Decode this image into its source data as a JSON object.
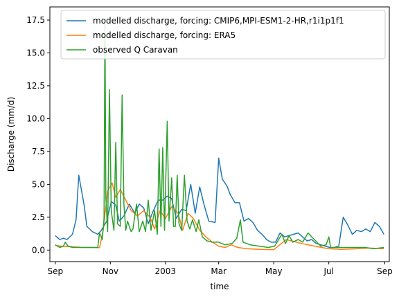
{
  "chart_data": {
    "type": "line",
    "title": "",
    "xlabel": "time",
    "ylabel": "Discharge (mm/d)",
    "x_range": [
      "2002-08-26",
      "2003-09-06"
    ],
    "ylim": [
      -0.88,
      18.5
    ],
    "x_ticks": [
      {
        "date": "2002-09-01",
        "label": "Sep"
      },
      {
        "date": "2002-11-01",
        "label": "Nov"
      },
      {
        "date": "2003-01-01",
        "label": "2003"
      },
      {
        "date": "2003-03-01",
        "label": "Mar"
      },
      {
        "date": "2003-05-01",
        "label": "May"
      },
      {
        "date": "2003-07-01",
        "label": "Jul"
      },
      {
        "date": "2003-09-01",
        "label": "Sep"
      }
    ],
    "y_ticks": [
      0.0,
      2.5,
      5.0,
      7.5,
      10.0,
      12.5,
      15.0,
      17.5
    ],
    "y_tick_labels": [
      "0.0",
      "2.5",
      "5.0",
      "7.5",
      "10.0",
      "12.5",
      "15.0",
      "17.5"
    ],
    "grid": false,
    "legend_position": "top-right",
    "series": [
      {
        "name": "modelled discharge, forcing: CMIP6,MPI-ESM1-2-HR,r1i1p1f1",
        "color": "#1f77b4",
        "x": [
          "2002-09-01",
          "2002-09-06",
          "2002-09-10",
          "2002-09-14",
          "2002-09-20",
          "2002-09-24",
          "2002-09-27",
          "2002-10-03",
          "2002-10-06",
          "2002-10-12",
          "2002-10-18",
          "2002-10-22",
          "2002-10-28",
          "2002-11-02",
          "2002-11-07",
          "2002-11-11",
          "2002-11-16",
          "2002-11-22",
          "2002-11-28",
          "2002-12-03",
          "2002-12-08",
          "2002-12-13",
          "2002-12-18",
          "2002-12-24",
          "2002-12-29",
          "2003-01-03",
          "2003-01-08",
          "2003-01-13",
          "2003-01-19",
          "2003-01-24",
          "2003-01-29",
          "2003-02-03",
          "2003-02-08",
          "2003-02-13",
          "2003-02-18",
          "2003-02-25",
          "2003-03-01",
          "2003-03-05",
          "2003-03-10",
          "2003-03-14",
          "2003-03-19",
          "2003-03-24",
          "2003-03-29",
          "2003-04-03",
          "2003-04-08",
          "2003-04-13",
          "2003-04-18",
          "2003-04-23",
          "2003-04-28",
          "2003-05-03",
          "2003-05-08",
          "2003-05-13",
          "2003-05-18",
          "2003-05-23",
          "2003-05-28",
          "2003-06-02",
          "2003-06-07",
          "2003-06-12",
          "2003-06-17",
          "2003-06-22",
          "2003-06-27",
          "2003-07-02",
          "2003-07-07",
          "2003-07-12",
          "2003-07-17",
          "2003-07-22",
          "2003-07-27",
          "2003-08-01",
          "2003-08-06",
          "2003-08-11",
          "2003-08-16",
          "2003-08-21",
          "2003-08-26",
          "2003-08-31"
        ],
        "y": [
          1.1,
          0.8,
          0.9,
          0.8,
          1.2,
          2.3,
          5.7,
          3.4,
          1.8,
          1.4,
          1.2,
          1.5,
          2.2,
          3.7,
          3.4,
          2.2,
          2.6,
          3.5,
          2.8,
          3.5,
          3.2,
          2.0,
          2.9,
          3.8,
          3.8,
          4.1,
          3.9,
          2.4,
          3.1,
          3.0,
          5.0,
          2.8,
          4.8,
          3.4,
          2.2,
          2.1,
          7.0,
          5.4,
          4.9,
          4.2,
          3.6,
          3.6,
          2.2,
          2.4,
          2.1,
          1.5,
          1.2,
          0.8,
          0.6,
          0.6,
          1.3,
          1.0,
          1.1,
          1.2,
          1.3,
          1.0,
          0.7,
          0.8,
          0.5,
          0.4,
          0.3,
          0.2,
          0.2,
          0.3,
          2.5,
          1.9,
          1.2,
          1.5,
          1.4,
          1.6,
          1.4,
          2.1,
          1.8,
          1.2
        ],
        "y_max": 7.0
      },
      {
        "name": "modelled discharge, forcing: ERA5",
        "color": "#ff7f0e",
        "x": [
          "2002-09-01",
          "2002-09-10",
          "2002-09-20",
          "2002-10-01",
          "2002-10-10",
          "2002-10-20",
          "2002-10-24",
          "2002-10-29",
          "2002-11-03",
          "2002-11-07",
          "2002-11-12",
          "2002-11-18",
          "2002-11-24",
          "2002-12-01",
          "2002-12-08",
          "2002-12-15",
          "2002-12-20",
          "2002-12-26",
          "2003-01-01",
          "2003-01-08",
          "2003-01-15",
          "2003-01-20",
          "2003-01-26",
          "2003-02-01",
          "2003-02-08",
          "2003-02-15",
          "2003-02-22",
          "2003-03-01",
          "2003-03-08",
          "2003-03-15",
          "2003-03-22",
          "2003-04-01",
          "2003-04-15",
          "2003-05-01",
          "2003-05-15",
          "2003-06-01",
          "2003-06-15",
          "2003-07-01",
          "2003-07-15",
          "2003-08-01",
          "2003-08-15",
          "2003-08-31"
        ],
        "y": [
          0.35,
          0.28,
          0.25,
          0.2,
          0.2,
          0.18,
          1.5,
          4.5,
          5.1,
          4.0,
          4.6,
          3.8,
          3.0,
          2.6,
          3.0,
          2.5,
          1.6,
          3.0,
          2.4,
          3.3,
          2.8,
          1.5,
          2.8,
          2.4,
          1.5,
          1.0,
          0.6,
          0.3,
          0.2,
          0.4,
          0.2,
          0.1,
          0.05,
          0.03,
          0.8,
          0.5,
          0.3,
          0.1,
          0.05,
          0.1,
          0.15,
          0.1
        ],
        "y_max": 5.1
      },
      {
        "name": "observed Q Caravan",
        "color": "#2ca02c",
        "x": [
          "2002-09-01",
          "2002-09-06",
          "2002-09-10",
          "2002-09-12",
          "2002-09-15",
          "2002-09-20",
          "2002-09-30",
          "2002-10-10",
          "2002-10-18",
          "2002-10-20",
          "2002-10-23",
          "2002-10-25",
          "2002-10-26",
          "2002-10-27",
          "2002-10-29",
          "2002-10-31",
          "2002-11-02",
          "2002-11-05",
          "2002-11-07",
          "2002-11-09",
          "2002-11-12",
          "2002-11-14",
          "2002-11-16",
          "2002-11-18",
          "2002-11-20",
          "2002-11-24",
          "2002-11-26",
          "2002-11-30",
          "2002-12-03",
          "2002-12-07",
          "2002-12-10",
          "2002-12-13",
          "2002-12-16",
          "2002-12-20",
          "2002-12-23",
          "2002-12-25",
          "2002-12-27",
          "2002-12-29",
          "2002-12-31",
          "2003-01-03",
          "2003-01-05",
          "2003-01-08",
          "2003-01-10",
          "2003-01-12",
          "2003-01-14",
          "2003-01-16",
          "2003-01-19",
          "2003-01-22",
          "2003-01-25",
          "2003-01-28",
          "2003-01-31",
          "2003-02-04",
          "2003-02-07",
          "2003-02-11",
          "2003-02-16",
          "2003-02-22",
          "2003-03-01",
          "2003-03-08",
          "2003-03-16",
          "2003-03-21",
          "2003-03-25",
          "2003-03-28",
          "2003-04-05",
          "2003-04-15",
          "2003-04-25",
          "2003-05-02",
          "2003-05-10",
          "2003-05-14",
          "2003-05-18",
          "2003-05-22",
          "2003-05-28",
          "2003-06-02",
          "2003-06-08",
          "2003-06-15",
          "2003-06-22",
          "2003-06-28",
          "2003-07-01",
          "2003-07-03",
          "2003-07-08",
          "2003-07-20",
          "2003-08-01",
          "2003-08-10",
          "2003-08-20",
          "2003-08-31"
        ],
        "y": [
          0.4,
          0.2,
          0.3,
          0.6,
          0.3,
          0.2,
          0.2,
          0.2,
          0.2,
          1.3,
          0.8,
          2.4,
          17.6,
          4.0,
          1.4,
          12.2,
          3.0,
          1.5,
          8.2,
          2.0,
          1.8,
          11.8,
          3.5,
          1.5,
          2.2,
          1.4,
          1.6,
          3.5,
          1.4,
          2.2,
          1.4,
          3.8,
          1.5,
          3.0,
          1.2,
          7.7,
          1.8,
          7.8,
          1.5,
          9.8,
          2.2,
          5.5,
          1.8,
          1.8,
          5.7,
          2.0,
          1.5,
          5.7,
          2.2,
          1.6,
          2.3,
          1.4,
          2.3,
          1.0,
          0.7,
          0.6,
          0.6,
          0.4,
          0.5,
          0.9,
          2.3,
          0.6,
          0.4,
          0.3,
          0.2,
          0.3,
          1.2,
          0.5,
          1.1,
          0.6,
          0.8,
          0.6,
          1.3,
          0.8,
          0.3,
          0.4,
          1.0,
          0.2,
          0.2,
          0.2,
          0.2,
          0.2,
          0.1,
          0.2
        ],
        "y_max": 17.6
      }
    ]
  }
}
